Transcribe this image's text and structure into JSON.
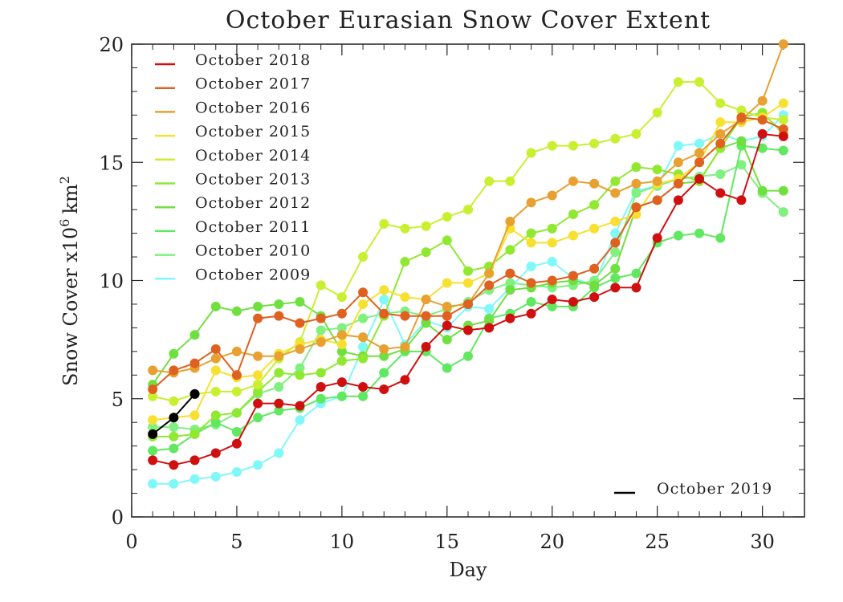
{
  "chart_data": {
    "type": "line",
    "title": "October Eurasian Snow Cover Extent",
    "xlabel": "Day",
    "ylabel": {
      "main": "Snow Cover x10",
      "exp": "6",
      "unit": "km",
      "unit_exp": "2"
    },
    "xlim": [
      0,
      32
    ],
    "ylim": [
      0,
      20
    ],
    "xticks": [
      0,
      5,
      10,
      15,
      20,
      25,
      30
    ],
    "yticks": [
      0,
      5,
      10,
      15,
      20
    ],
    "xtick_labels": [
      "0",
      "5",
      "10",
      "15",
      "20",
      "25",
      "30"
    ],
    "ytick_labels": [
      "0",
      "5",
      "10",
      "15",
      "20"
    ],
    "grid": false,
    "legend_position": "top-left",
    "series": [
      {
        "name": "October 2009",
        "color": "#80F8F8",
        "values": [
          1.4,
          1.4,
          1.6,
          1.7,
          1.9,
          2.2,
          2.7,
          4.1,
          4.8,
          5.1,
          7.2,
          9.2,
          7.3,
          8.3,
          8.0,
          8.9,
          8.8,
          9.7,
          10.6,
          10.8,
          10.1,
          9.8,
          12.0,
          13.8,
          14.0,
          15.7,
          15.8,
          16.2,
          15.9,
          16.1,
          17.0
        ]
      },
      {
        "name": "October 2010",
        "color": "#80F080",
        "values": [
          3.8,
          3.8,
          3.7,
          3.9,
          4.4,
          5.2,
          5.5,
          6.3,
          7.9,
          8.0,
          8.4,
          8.6,
          8.7,
          8.5,
          8.8,
          9.1,
          9.6,
          9.9,
          9.8,
          9.7,
          9.8,
          10.0,
          11.2,
          13.7,
          14.0,
          14.3,
          14.4,
          14.5,
          14.9,
          13.7,
          12.9
        ]
      },
      {
        "name": "October 2011",
        "color": "#60E860",
        "values": [
          2.8,
          2.9,
          3.5,
          4.0,
          3.6,
          4.2,
          4.5,
          4.6,
          5.0,
          5.1,
          5.1,
          6.1,
          7.0,
          7.0,
          6.3,
          6.8,
          8.4,
          8.6,
          9.1,
          8.9,
          8.9,
          9.7,
          10.1,
          10.3,
          11.6,
          11.9,
          12.0,
          11.8,
          15.7,
          15.6,
          15.5
        ]
      },
      {
        "name": "October 2012",
        "color": "#70E040",
        "values": [
          5.6,
          6.9,
          7.7,
          8.9,
          8.7,
          8.9,
          9.0,
          9.1,
          8.5,
          7.0,
          6.8,
          6.8,
          7.1,
          8.2,
          7.5,
          8.1,
          8.3,
          9.6,
          9.7,
          9.9,
          10.0,
          9.8,
          10.5,
          13.1,
          13.4,
          14.1,
          14.2,
          15.6,
          15.9,
          13.8,
          13.8
        ]
      },
      {
        "name": "October 2013",
        "color": "#90E830",
        "values": [
          3.4,
          3.4,
          3.5,
          4.3,
          4.4,
          5.3,
          6.1,
          6.0,
          6.1,
          6.6,
          6.7,
          8.5,
          10.8,
          11.2,
          11.7,
          10.4,
          10.6,
          11.3,
          12.0,
          12.2,
          12.8,
          13.2,
          14.2,
          14.8,
          14.7,
          14.5,
          14.2,
          15.6,
          16.9,
          17.1,
          16.2
        ]
      },
      {
        "name": "October 2014",
        "color": "#C8F030",
        "values": [
          5.1,
          4.9,
          5.2,
          5.3,
          5.3,
          5.6,
          6.7,
          7.4,
          9.8,
          9.3,
          11.0,
          12.4,
          12.2,
          12.3,
          12.7,
          13.0,
          14.2,
          14.2,
          15.4,
          15.7,
          15.7,
          15.8,
          16.0,
          16.2,
          17.1,
          18.4,
          18.4,
          17.5,
          17.2,
          16.9,
          16.8
        ]
      },
      {
        "name": "October 2015",
        "color": "#F8E030",
        "values": [
          4.1,
          4.2,
          4.3,
          6.2,
          5.9,
          6.0,
          6.9,
          7.3,
          7.5,
          7.3,
          9.0,
          9.6,
          9.3,
          9.2,
          9.9,
          9.9,
          10.3,
          12.2,
          11.6,
          11.6,
          11.9,
          12.2,
          12.5,
          12.8,
          14.1,
          14.3,
          15.0,
          16.7,
          16.7,
          16.9,
          17.5
        ]
      },
      {
        "name": "October 2016",
        "color": "#E8A030",
        "values": [
          6.2,
          6.1,
          6.3,
          6.7,
          7.0,
          6.8,
          6.8,
          7.1,
          7.4,
          7.7,
          7.6,
          7.1,
          7.2,
          9.2,
          8.9,
          9.0,
          10.3,
          12.5,
          13.3,
          13.6,
          14.2,
          14.1,
          13.7,
          14.1,
          14.2,
          15.0,
          15.4,
          16.2,
          16.8,
          17.6,
          20.0
        ]
      },
      {
        "name": "October 2017",
        "color": "#E06020",
        "values": [
          5.4,
          6.2,
          6.5,
          7.1,
          6.0,
          8.4,
          8.5,
          8.2,
          8.4,
          8.6,
          9.5,
          8.6,
          8.5,
          8.5,
          8.5,
          9.0,
          9.8,
          10.3,
          9.9,
          10.0,
          10.2,
          10.5,
          11.6,
          13.1,
          13.4,
          14.1,
          15.0,
          15.8,
          16.9,
          16.8,
          16.4
        ]
      },
      {
        "name": "October 2018",
        "color": "#D01010",
        "values": [
          2.4,
          2.2,
          2.4,
          2.7,
          3.1,
          4.8,
          4.8,
          4.7,
          5.5,
          5.7,
          5.5,
          5.4,
          5.8,
          7.2,
          8.1,
          7.9,
          8.0,
          8.4,
          8.6,
          9.2,
          9.1,
          9.3,
          9.7,
          9.7,
          11.8,
          13.4,
          14.3,
          13.7,
          13.4,
          16.2,
          16.1
        ]
      },
      {
        "name": "October 2019",
        "color": "#000000",
        "values": [
          3.5,
          4.2,
          5.2
        ]
      }
    ],
    "legend_top_left": [
      "October 2018",
      "October 2017",
      "October 2016",
      "October 2015",
      "October 2014",
      "October 2013",
      "October 2012",
      "October 2011",
      "October 2010",
      "October 2009"
    ],
    "legend_bottom_right": [
      "October 2019"
    ]
  }
}
